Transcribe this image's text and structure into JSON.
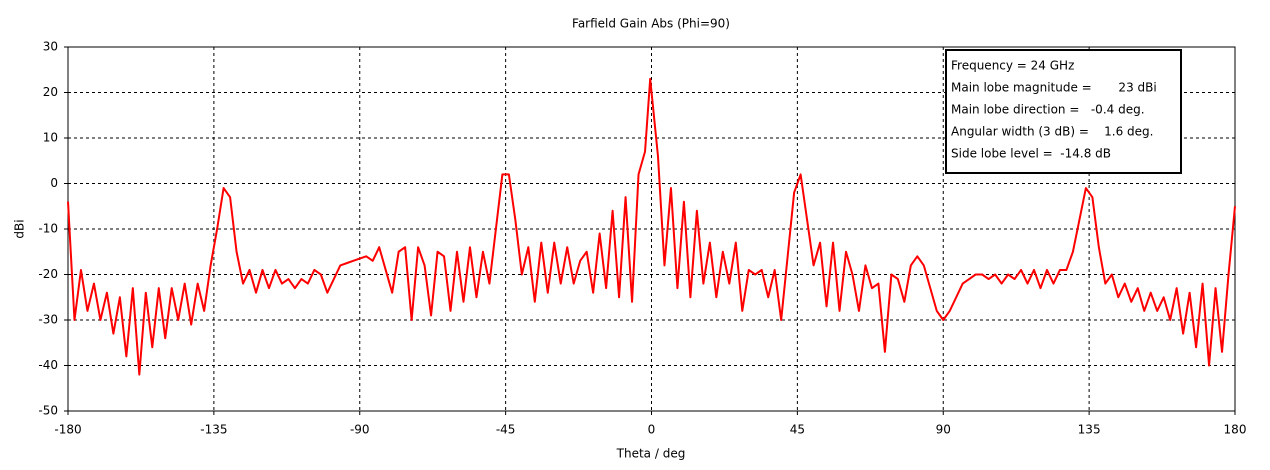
{
  "chart_data": {
    "type": "line",
    "title": "Farfield Gain Abs (Phi=90)",
    "x_label": "Theta / deg",
    "y_label": "dBi",
    "xlim": [
      -180,
      180
    ],
    "xticks": [
      -180,
      -135,
      -90,
      -45,
      0,
      45,
      90,
      135,
      180
    ],
    "ylim": [
      -50,
      30
    ],
    "yticks": [
      -50,
      -40,
      -30,
      -20,
      -10,
      0,
      10,
      20,
      30
    ],
    "grid": true,
    "annotation": [
      "Frequency = 24 GHz",
      "Main lobe magnitude =       23 dBi",
      "Main lobe direction =   -0.4 deg.",
      "Angular width (3 dB) =    1.6 deg.",
      "Side lobe level =  -14.8 dB"
    ],
    "x": [
      -180,
      -178,
      -176,
      -174,
      -172,
      -170,
      -168,
      -166,
      -164,
      -162,
      -160,
      -158,
      -156,
      -154,
      -152,
      -150,
      -148,
      -146,
      -144,
      -142,
      -140,
      -138,
      -136,
      -134,
      -132,
      -130,
      -128,
      -126,
      -124,
      -122,
      -120,
      -118,
      -116,
      -114,
      -112,
      -110,
      -108,
      -106,
      -104,
      -102,
      -100,
      -98,
      -96,
      -94,
      -92,
      -90,
      -88,
      -86,
      -84,
      -82,
      -80,
      -78,
      -76,
      -74,
      -72,
      -70,
      -68,
      -66,
      -64,
      -62,
      -60,
      -58,
      -56,
      -54,
      -52,
      -50,
      -48,
      -46,
      -44,
      -42,
      -40,
      -38,
      -36,
      -34,
      -32,
      -30,
      -28,
      -26,
      -24,
      -22,
      -20,
      -18,
      -16,
      -14,
      -12,
      -10,
      -8,
      -6,
      -4,
      -2,
      -0.4,
      2,
      4,
      6,
      8,
      10,
      12,
      14,
      16,
      18,
      20,
      22,
      24,
      26,
      28,
      30,
      32,
      34,
      36,
      38,
      40,
      42,
      44,
      46,
      48,
      50,
      52,
      54,
      56,
      58,
      60,
      62,
      64,
      66,
      68,
      70,
      72,
      74,
      76,
      78,
      80,
      82,
      84,
      86,
      88,
      90,
      92,
      94,
      96,
      98,
      100,
      102,
      104,
      106,
      108,
      110,
      112,
      114,
      116,
      118,
      120,
      122,
      124,
      126,
      128,
      130,
      132,
      134,
      136,
      138,
      140,
      142,
      144,
      146,
      148,
      150,
      152,
      154,
      156,
      158,
      160,
      162,
      164,
      166,
      168,
      170,
      172,
      174,
      176,
      178,
      180
    ],
    "series": [
      {
        "name": "Gain",
        "color": "#ff0000",
        "values": [
          -4,
          -30,
          -19,
          -28,
          -22,
          -30,
          -24,
          -33,
          -25,
          -38,
          -23,
          -42,
          -24,
          -36,
          -23,
          -34,
          -23,
          -30,
          -22,
          -31,
          -22,
          -28,
          -18,
          -10,
          -1,
          -3,
          -15,
          -22,
          -19,
          -24,
          -19,
          -23,
          -19,
          -22,
          -21,
          -23,
          -21,
          -22,
          -19,
          -20,
          -24,
          -21,
          -18,
          -17.5,
          -17,
          -16.5,
          -16,
          -17,
          -14,
          -19,
          -24,
          -15,
          -14,
          -30,
          -14,
          -18,
          -29,
          -15,
          -16,
          -28,
          -15,
          -26,
          -14,
          -25,
          -15,
          -22,
          -10,
          2,
          2,
          -8,
          -20,
          -14,
          -26,
          -13,
          -24,
          -13,
          -22,
          -14,
          -22,
          -17,
          -15,
          -24,
          -11,
          -23,
          -6,
          -25,
          -3,
          -26,
          2,
          7,
          23,
          6,
          -18,
          -1,
          -23,
          -4,
          -25,
          -6,
          -22,
          -13,
          -25,
          -15,
          -22,
          -13,
          -28,
          -19,
          -20,
          -19,
          -25,
          -19,
          -30,
          -16,
          -2,
          2,
          -8,
          -18,
          -13,
          -27,
          -13,
          -28,
          -15,
          -20,
          -28,
          -18,
          -23,
          -22,
          -37,
          -20,
          -21,
          -26,
          -18,
          -16,
          -18,
          -23,
          -28,
          -30,
          -28,
          -25,
          -22,
          -21,
          -20,
          -20,
          -21,
          -20,
          -22,
          -20,
          -21,
          -19,
          -22,
          -19,
          -23,
          -19,
          -22,
          -19,
          -19,
          -15,
          -8,
          -1,
          -3,
          -14,
          -22,
          -20,
          -25,
          -22,
          -26,
          -23,
          -28,
          -24,
          -28,
          -25,
          -30,
          -23,
          -33,
          -24,
          -36,
          -22,
          -40,
          -23,
          -37,
          -20,
          -5
        ]
      }
    ]
  }
}
